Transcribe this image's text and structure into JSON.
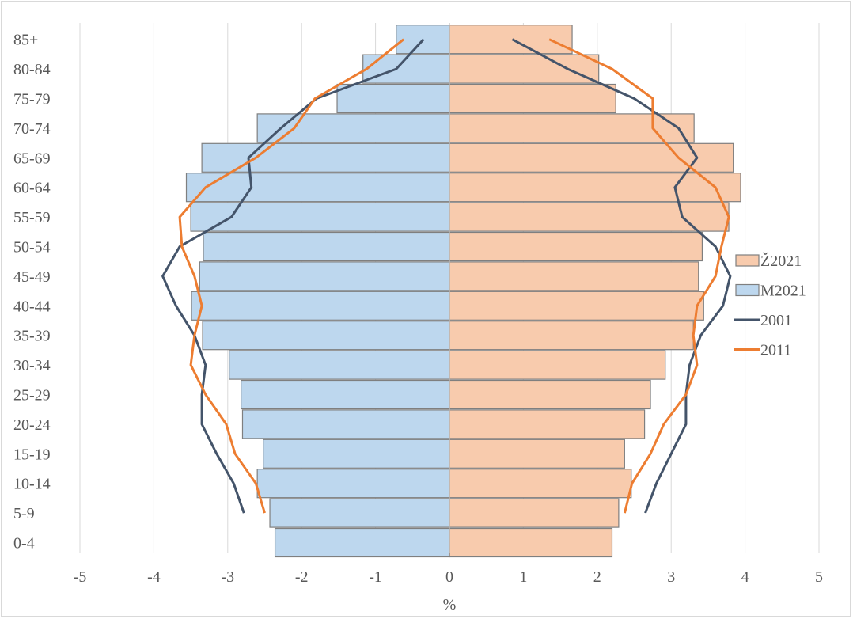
{
  "chart_data": {
    "type": "bar",
    "orientation": "horizontal",
    "categories": [
      "0-4",
      "5-9",
      "10-14",
      "15-19",
      "20-24",
      "25-29",
      "30-34",
      "35-39",
      "40-44",
      "45-49",
      "50-54",
      "55-59",
      "60-64",
      "65-69",
      "70-74",
      "75-79",
      "80-84",
      "85+"
    ],
    "x_ticks": [
      "-5",
      "-4",
      "-3",
      "-2",
      "-1",
      "0",
      "1",
      "2",
      "3",
      "4",
      "5"
    ],
    "x_tick_values": [
      -5,
      -4,
      -3,
      -2,
      -1,
      0,
      1,
      2,
      3,
      4,
      5
    ],
    "xlim": [
      -5,
      5
    ],
    "xlabel": "%",
    "grid": "vertical",
    "legend_position": "right",
    "series": [
      {
        "name": "Ž2021",
        "kind": "bar",
        "color": "#f8cbad",
        "stroke": "#7f7f7f",
        "values": [
          2.2,
          2.29,
          2.46,
          2.37,
          2.64,
          2.72,
          2.92,
          3.3,
          3.44,
          3.37,
          3.42,
          3.78,
          3.94,
          3.84,
          3.31,
          2.25,
          2.02,
          1.66
        ]
      },
      {
        "name": "M2021",
        "kind": "bar",
        "color": "#bdd7ee",
        "stroke": "#7f7f7f",
        "values": [
          -2.36,
          -2.43,
          -2.6,
          -2.52,
          -2.8,
          -2.82,
          -2.98,
          -3.34,
          -3.49,
          -3.38,
          -3.33,
          -3.5,
          -3.56,
          -3.35,
          -2.6,
          -1.52,
          -1.17,
          -0.72
        ]
      },
      {
        "name": "2001",
        "kind": "line",
        "color": "#44546a",
        "left": [
          null,
          -2.78,
          -2.92,
          -3.15,
          -3.35,
          -3.35,
          -3.3,
          -3.45,
          -3.7,
          -3.88,
          -3.65,
          -2.95,
          -2.68,
          -2.72,
          -2.28,
          -1.8,
          -0.72,
          -0.35
        ],
        "right": [
          null,
          2.65,
          2.8,
          3.0,
          3.2,
          3.2,
          3.25,
          3.4,
          3.7,
          3.8,
          3.6,
          3.15,
          3.05,
          3.35,
          3.1,
          2.5,
          1.6,
          0.85
        ]
      },
      {
        "name": "2011",
        "kind": "line",
        "color": "#ed7d31",
        "left": [
          null,
          -2.5,
          -2.62,
          -2.9,
          -3.02,
          -3.3,
          -3.5,
          -3.45,
          -3.35,
          -3.45,
          -3.62,
          -3.65,
          -3.3,
          -2.62,
          -2.1,
          -1.82,
          -1.12,
          -0.62
        ],
        "right": [
          null,
          2.37,
          2.47,
          2.72,
          2.9,
          3.2,
          3.35,
          3.3,
          3.35,
          3.6,
          3.68,
          3.78,
          3.6,
          3.1,
          2.75,
          2.75,
          2.2,
          1.35
        ]
      }
    ]
  }
}
